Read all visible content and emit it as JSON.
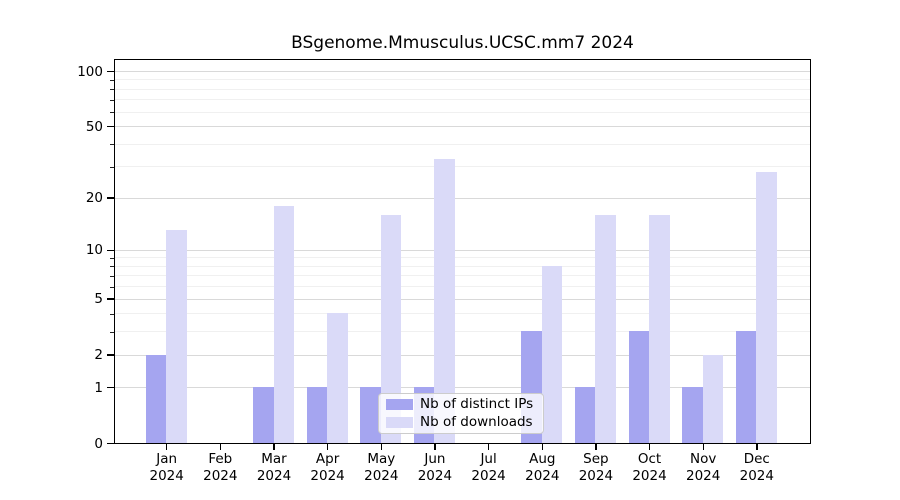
{
  "figure": {
    "title": "BSgenome.Mmusculus.UCSC.mm7 2024"
  },
  "legend": {
    "items": [
      {
        "label": "Nb of distinct IPs",
        "color": "#a5a5f0"
      },
      {
        "label": "Nb of downloads",
        "color": "#dadaf8"
      }
    ]
  },
  "chart_data": {
    "type": "bar",
    "title": "BSgenome.Mmusculus.UCSC.mm7 2024",
    "categories": [
      "Jan",
      "Feb",
      "Mar",
      "Apr",
      "May",
      "Jun",
      "Jul",
      "Aug",
      "Sep",
      "Oct",
      "Nov",
      "Dec"
    ],
    "year_label": "2024",
    "series": [
      {
        "name": "Nb of distinct IPs",
        "color": "#a5a5f0",
        "values": [
          2,
          0,
          1,
          1,
          1,
          1,
          0,
          3,
          1,
          3,
          1,
          3
        ]
      },
      {
        "name": "Nb of downloads",
        "color": "#dadaf8",
        "values": [
          13,
          0,
          18,
          4,
          16,
          33,
          0,
          8,
          16,
          16,
          2,
          28
        ]
      }
    ],
    "xlabel": "",
    "ylabel": "",
    "y_axis": {
      "scale": "log1p",
      "ticks": [
        0,
        1,
        2,
        5,
        10,
        20,
        50,
        100
      ],
      "minor_gridlines": [
        3,
        4,
        6,
        7,
        8,
        9,
        30,
        40,
        60,
        70,
        80,
        90
      ],
      "top_value": 121
    },
    "grid": true,
    "legend_position": "lower-center",
    "colors": {
      "grid_major": "#d9d9d9",
      "grid_minor": "#f0f0f0",
      "spine": "#000000",
      "text": "#000000"
    }
  }
}
